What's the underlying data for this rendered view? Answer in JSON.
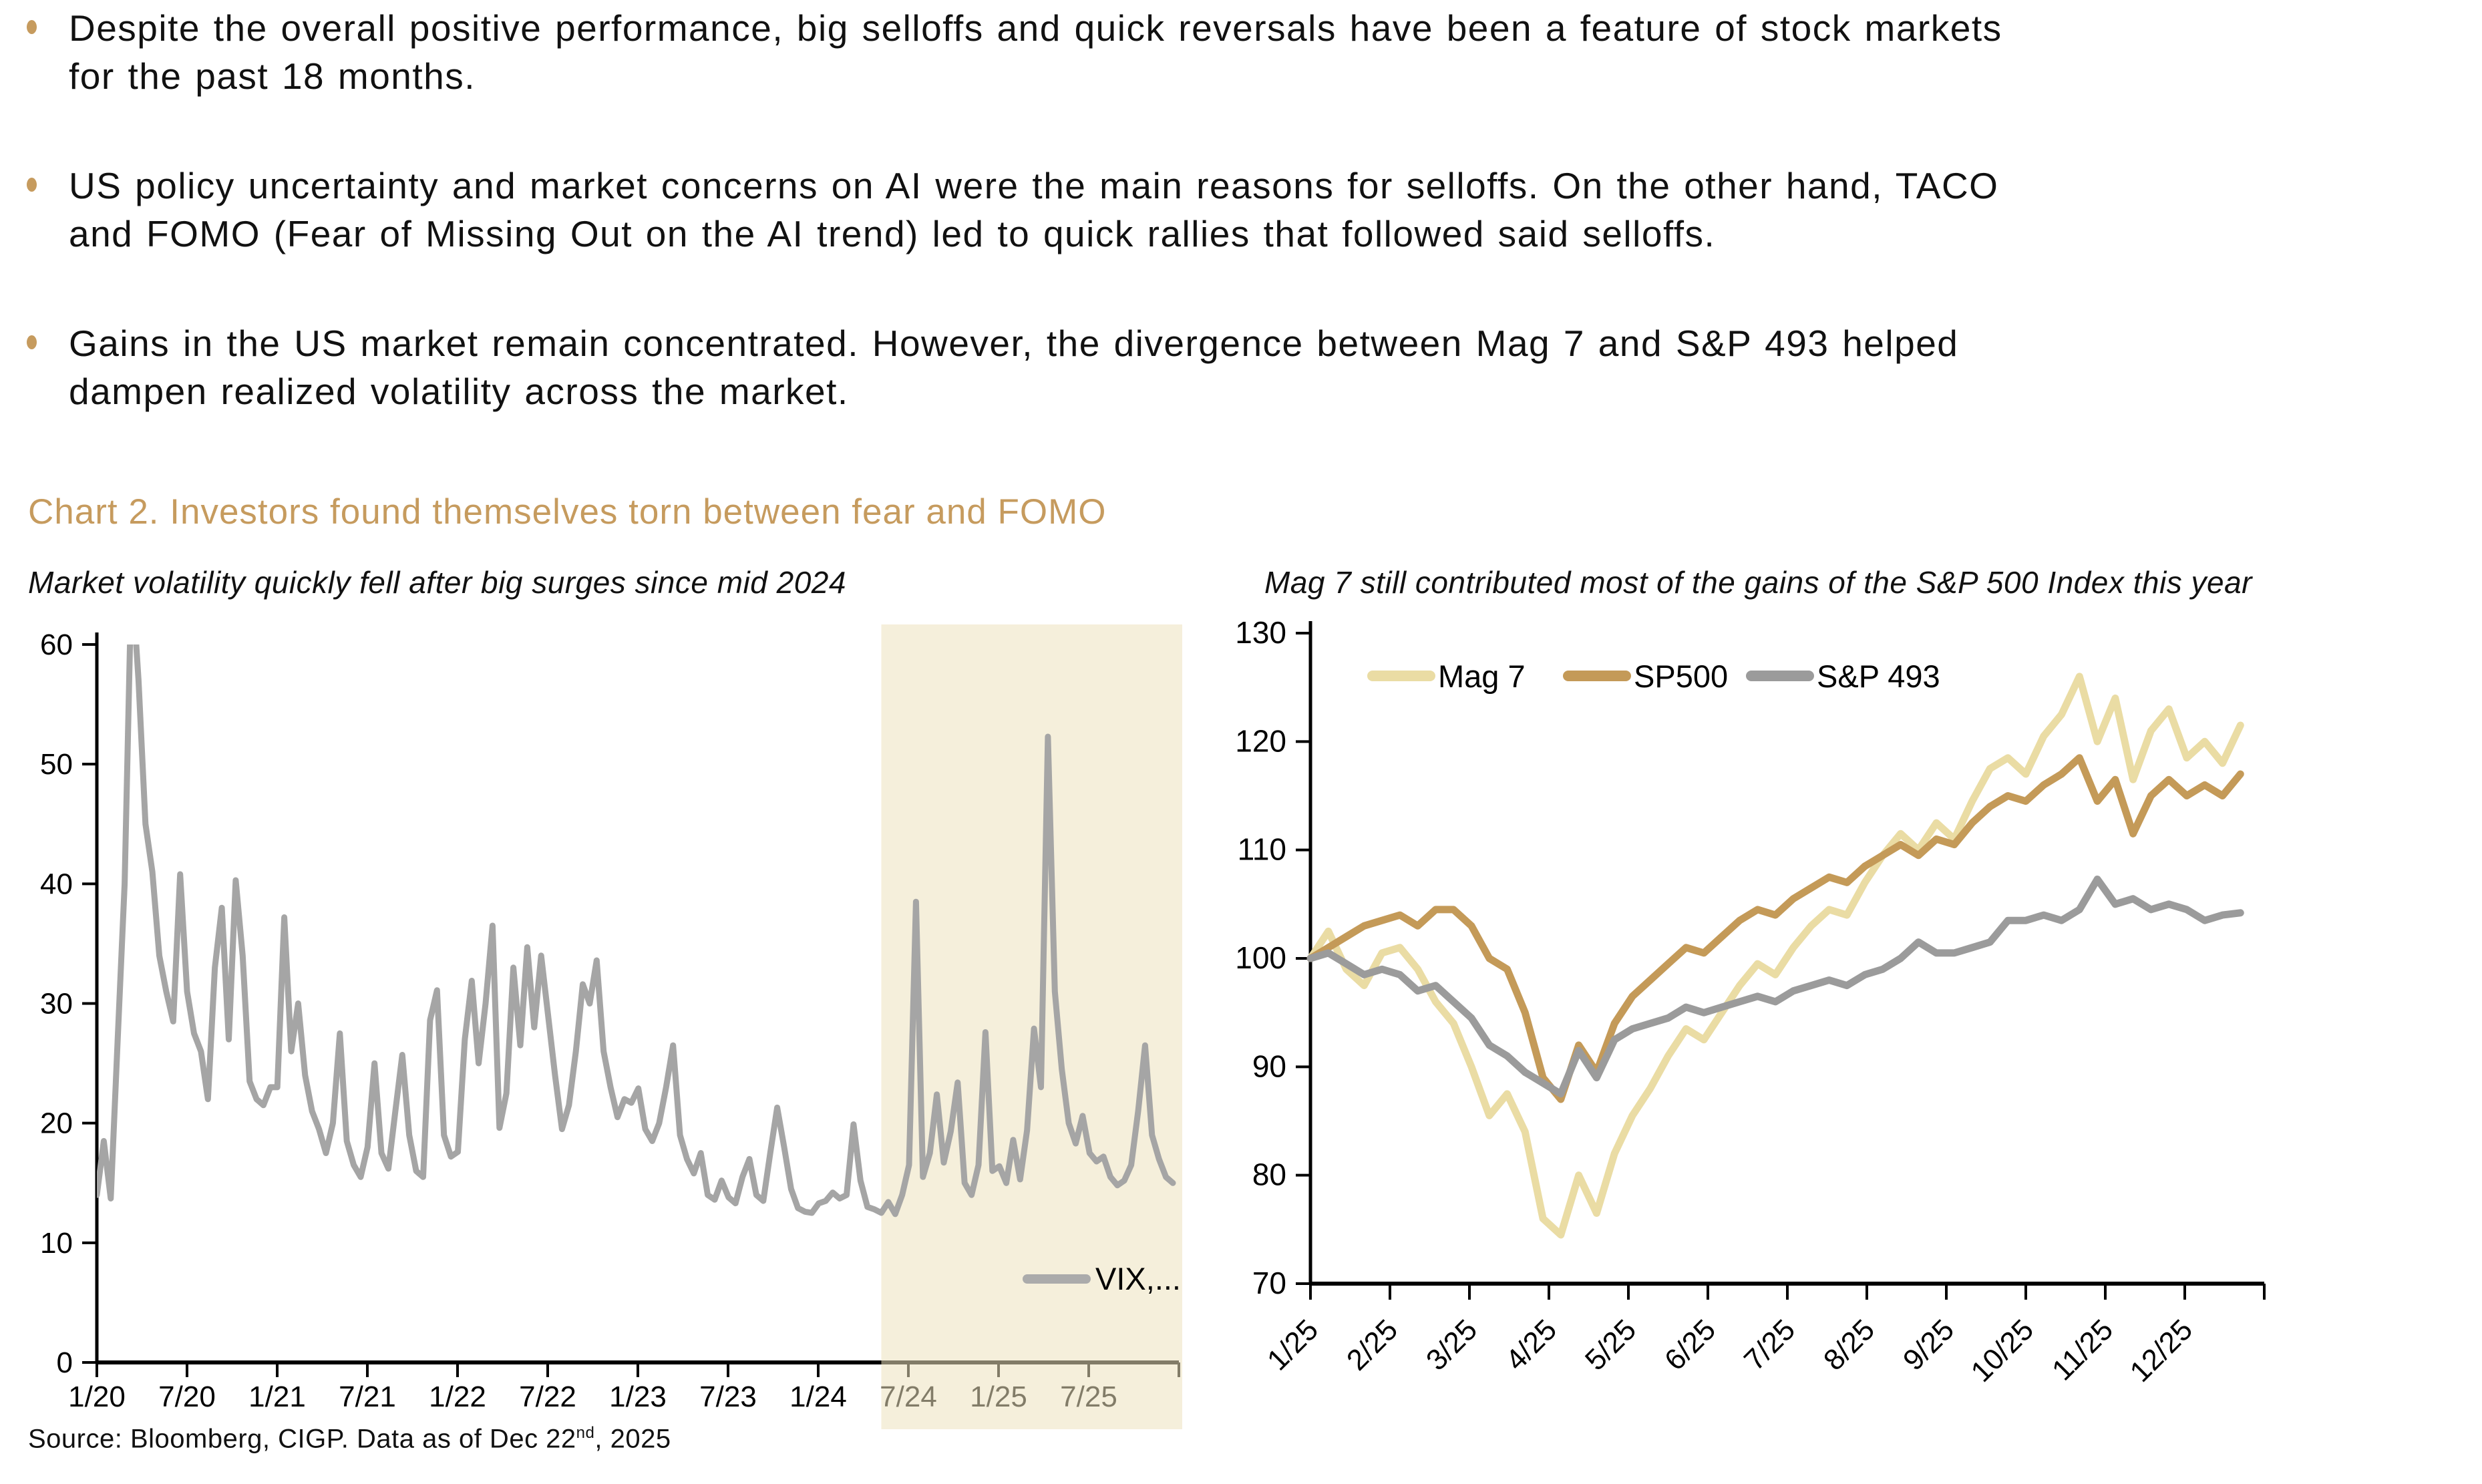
{
  "accent_color": "#C69B5E",
  "bullets": {
    "items": [
      "Despite the overall positive performance, big selloffs and quick reversals have been a feature of stock markets\nfor the past 18 months.",
      "US policy uncertainty and market concerns on AI were the main reasons for selloffs. On the other hand, TACO\nand FOMO (Fear of Missing Out on the AI trend) led to quick rallies that followed said selloffs.",
      "Gains in the US market remain concentrated. However, the divergence between Mag 7 and S&P 493 helped\ndampen realized volatility across the market."
    ]
  },
  "section": {
    "title": "Chart 2. Investors found themselves torn between fear and FOMO"
  },
  "source": {
    "text_before_sup": "Source: Bloomberg, CIGP. Data as of Dec 22",
    "sup": "nd",
    "text_after_sup": ", 2025"
  },
  "chart_data": [
    {
      "type": "line",
      "title": "Market volatility quickly fell after big surges since mid 2024",
      "xlabel": "",
      "ylabel": "",
      "ylim": [
        0,
        60
      ],
      "y_ticks": [
        0,
        10,
        20,
        30,
        40,
        50,
        60
      ],
      "x_tick_labels": [
        "1/20",
        "7/20",
        "1/21",
        "7/21",
        "1/22",
        "7/22",
        "1/23",
        "7/23",
        "1/24",
        "7/24",
        "1/25",
        "7/25"
      ],
      "x_months_span": 72,
      "points_month_span": 71.6,
      "grid": false,
      "legend_position": "inside-bottom-right",
      "legend": {
        "swatch_color": "#ABABAB",
        "text_color": "#7C786B"
      },
      "highlight": {
        "fill": "#EDE2BD",
        "opacity": 0.55,
        "start_index": 113,
        "note": "beige band from mid 2024 to end"
      },
      "series": [
        {
          "name": "VIX,...",
          "color": "#A5A5A5",
          "cadence": "biweekly Jan 2020 - Dec 2025",
          "values": [
            14,
            18.5,
            13.7,
            27,
            40,
            66,
            57,
            45,
            41,
            34,
            31,
            28.5,
            40.8,
            31,
            27.5,
            26,
            22,
            33,
            38,
            27,
            40.3,
            34,
            23.5,
            22,
            21.5,
            23,
            23,
            37.2,
            26,
            30,
            24,
            21,
            19.5,
            17.5,
            20,
            27.5,
            18.5,
            16.5,
            15.5,
            18,
            25,
            17.5,
            16.2,
            21,
            25.7,
            19,
            16,
            15.5,
            28.6,
            31.1,
            19,
            17.2,
            17.6,
            27,
            31.9,
            25,
            30,
            36.5,
            19.6,
            22.5,
            33,
            26.5,
            34.7,
            28,
            34,
            29,
            24,
            19.5,
            21.5,
            26,
            31.6,
            30,
            33.6,
            26,
            23,
            20.5,
            22,
            21.7,
            22.9,
            19.5,
            18.5,
            20,
            23,
            26.5,
            19,
            17,
            15.8,
            17.5,
            14,
            13.6,
            15.2,
            13.8,
            13.3,
            15.5,
            17,
            14,
            13.5,
            17.5,
            21.3,
            18,
            14.5,
            12.9,
            12.6,
            12.5,
            13.3,
            13.5,
            14.2,
            13.7,
            14,
            19.9,
            15.2,
            13,
            12.8,
            12.5,
            13.4,
            12.4,
            14,
            16.5,
            38.5,
            15.5,
            17.5,
            22.4,
            16.7,
            19.3,
            23.4,
            15,
            14,
            16.5,
            27.6,
            16,
            16.4,
            15,
            18.6,
            15.3,
            19.4,
            27.9,
            23,
            52.3,
            31,
            24.5,
            20,
            18.3,
            20.6,
            17.5,
            16.8,
            17.2,
            15.5,
            14.8,
            15.2,
            16.5,
            21,
            26.5,
            19,
            17,
            15.5,
            15
          ]
        }
      ]
    },
    {
      "type": "line",
      "title": "Mag 7 still contributed most of the gains of the S&P 500 Index this year",
      "xlabel": "",
      "ylabel": "",
      "ylim": [
        70,
        130
      ],
      "y_ticks": [
        70,
        80,
        90,
        100,
        110,
        120,
        130
      ],
      "x_tick_labels": [
        "1/25",
        "2/25",
        "3/25",
        "4/25",
        "5/25",
        "6/25",
        "7/25",
        "8/25",
        "9/25",
        "10/25",
        "11/25",
        "12/25"
      ],
      "x_months_span": 12,
      "points_month_span": 11.7,
      "grid": false,
      "legend_position": "top",
      "series": [
        {
          "name": "Mag 7",
          "color": "#EADCA4",
          "cadence": "weekly Jan 2025 - Dec 2025, indexed 100 at start",
          "values": [
            100,
            102.5,
            99,
            97.5,
            100.5,
            101,
            99,
            96,
            94,
            90,
            85.5,
            87.5,
            84,
            76,
            74.5,
            80,
            76.5,
            82,
            85.5,
            88,
            91,
            93.5,
            92.5,
            95,
            97.5,
            99.5,
            98.5,
            101,
            103,
            104.5,
            104,
            107,
            109.5,
            111.5,
            110,
            112.5,
            111,
            114.5,
            117.5,
            118.5,
            117,
            120.5,
            122.5,
            126,
            120,
            124,
            116.5,
            121,
            123,
            118.5,
            120,
            118,
            121.5
          ]
        },
        {
          "name": "SP500",
          "color": "#C49A58",
          "cadence": "weekly Jan 2025 - Dec 2025, indexed 100 at start",
          "values": [
            100,
            101,
            102,
            103,
            103.5,
            104,
            103,
            104.5,
            104.5,
            103,
            100,
            99,
            95,
            89,
            87,
            92,
            89.5,
            94,
            96.5,
            98,
            99.5,
            101,
            100.5,
            102,
            103.5,
            104.5,
            104,
            105.5,
            106.5,
            107.5,
            107,
            108.5,
            109.5,
            110.5,
            109.5,
            111,
            110.5,
            112.5,
            114,
            115,
            114.5,
            116,
            117,
            118.5,
            114.5,
            116.5,
            111.5,
            115,
            116.5,
            115,
            116,
            115,
            117
          ]
        },
        {
          "name": "S&P 493",
          "color": "#9B9B9B",
          "cadence": "weekly Jan 2025 - Dec 2025, indexed 100 at start",
          "values": [
            100,
            100.5,
            99.5,
            98.5,
            99,
            98.5,
            97,
            97.5,
            96,
            94.5,
            92,
            91,
            89.5,
            88.5,
            87.5,
            91.5,
            89,
            92.5,
            93.5,
            94,
            94.5,
            95.5,
            95,
            95.5,
            96,
            96.5,
            96,
            97,
            97.5,
            98,
            97.5,
            98.5,
            99,
            100,
            101.5,
            100.5,
            100.5,
            101,
            101.5,
            103.5,
            103.5,
            104,
            103.5,
            104.5,
            107.3,
            105,
            105.5,
            104.5,
            105,
            104.5,
            103.5,
            104,
            104.2
          ]
        }
      ]
    }
  ]
}
